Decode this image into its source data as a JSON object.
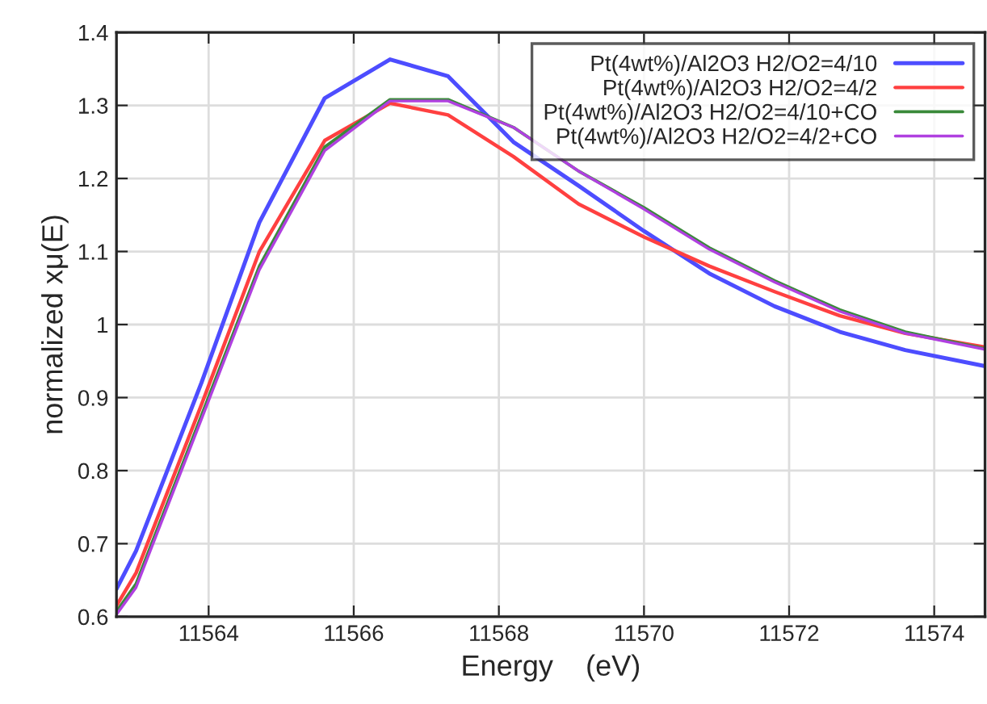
{
  "chart_data": {
    "type": "line",
    "xlabel": "Energy    (eV)",
    "ylabel": "normalized xμ(E)",
    "x": [
      11562.73,
      11563.0,
      11563.9,
      11564.7,
      11565.6,
      11566.5,
      11567.3,
      11568.2,
      11569.1,
      11570.0,
      11570.9,
      11571.8,
      11572.7,
      11573.6,
      11574.7
    ],
    "series": [
      {
        "name": "Pt(4wt%)/Al2O3 H2/O2=4/10",
        "color": "#4d4dff",
        "values": [
          0.638,
          0.69,
          0.92,
          1.14,
          1.31,
          1.363,
          1.34,
          1.25,
          1.19,
          1.128,
          1.07,
          1.025,
          0.99,
          0.965,
          0.943
        ]
      },
      {
        "name": "Pt(4wt%)/Al2O3 H2/O2=4/2",
        "color": "#ff4040",
        "values": [
          0.615,
          0.66,
          0.89,
          1.1,
          1.252,
          1.303,
          1.287,
          1.23,
          1.165,
          1.12,
          1.08,
          1.045,
          1.012,
          0.988,
          0.969
        ]
      },
      {
        "name": "Pt(4wt%)/Al2O3 H2/O2=4/10+CO",
        "color": "#3a8a3a",
        "values": [
          0.607,
          0.645,
          0.875,
          1.08,
          1.243,
          1.308,
          1.308,
          1.27,
          1.21,
          1.16,
          1.105,
          1.06,
          1.02,
          0.99,
          0.967
        ]
      },
      {
        "name": "Pt(4wt%)/Al2O3 H2/O2=4/2+CO",
        "color": "#b040e0",
        "values": [
          0.603,
          0.64,
          0.87,
          1.075,
          1.238,
          1.306,
          1.306,
          1.27,
          1.21,
          1.158,
          1.103,
          1.058,
          1.018,
          0.988,
          0.966
        ]
      }
    ],
    "xlim": [
      11562.73,
      11574.7
    ],
    "xticks": [
      11564,
      11566,
      11568,
      11570,
      11572,
      11574
    ],
    "ylim": [
      0.6,
      1.4
    ],
    "yticks": [
      0.6,
      0.7,
      0.8,
      0.9,
      1,
      1.1,
      1.2,
      1.3,
      1.4
    ],
    "grid": true,
    "legend": "top right",
    "marker": "none",
    "line_style": "solid"
  }
}
